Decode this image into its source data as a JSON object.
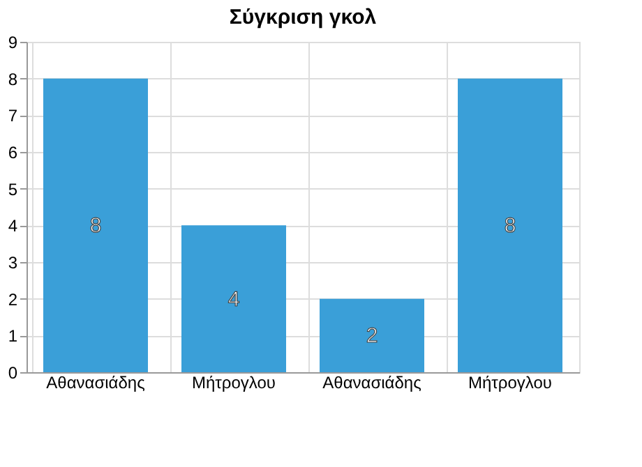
{
  "chart_data": {
    "type": "bar",
    "title": "Σύγκριση γκολ",
    "categories": [
      "Αθανασιάδης",
      "Μήτρογλου",
      "Αθανασιάδης",
      "Μήτρογλου"
    ],
    "values": [
      8,
      4,
      2,
      8
    ],
    "color": "#3a9fd8",
    "ylim": [
      0,
      9
    ],
    "yticks": [
      0,
      1,
      2,
      3,
      4,
      5,
      6,
      7,
      8,
      9
    ],
    "grid": true,
    "data_labels": true
  }
}
